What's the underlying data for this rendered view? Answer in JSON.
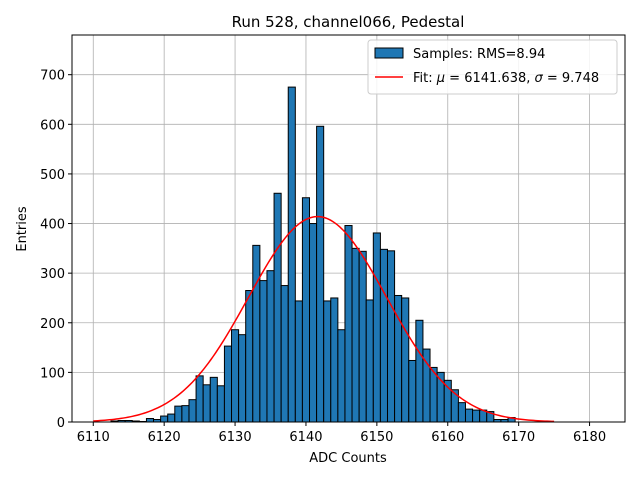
{
  "chart_data": {
    "type": "bar",
    "title": "Run 528, channel066, Pedestal",
    "xlabel": "ADC Counts",
    "ylabel": "Entries",
    "xlim": [
      6107,
      6185
    ],
    "ylim": [
      0,
      780
    ],
    "xticks": [
      6110,
      6120,
      6130,
      6140,
      6150,
      6160,
      6170,
      6180
    ],
    "yticks": [
      0,
      100,
      200,
      300,
      400,
      500,
      600,
      700
    ],
    "grid": true,
    "legend_position": "top-right",
    "legend": {
      "samples_label": "Samples: RMS=8.94",
      "fit_label_prefix": "Fit: ",
      "fit_mu_symbol": "μ",
      "fit_mu_value": " = 6141.638, ",
      "fit_sigma_symbol": "σ",
      "fit_sigma_value": " = 9.748"
    },
    "histogram": {
      "bin_width": 1,
      "name": "Samples: RMS=8.94",
      "bins_x": [
        6113,
        6114,
        6115,
        6116,
        6117,
        6118,
        6119,
        6120,
        6121,
        6122,
        6123,
        6124,
        6125,
        6126,
        6127,
        6128,
        6129,
        6130,
        6131,
        6132,
        6133,
        6134,
        6135,
        6136,
        6137,
        6138,
        6139,
        6140,
        6141,
        6142,
        6143,
        6144,
        6145,
        6146,
        6147,
        6148,
        6149,
        6150,
        6151,
        6152,
        6153,
        6154,
        6155,
        6156,
        6157,
        6158,
        6159,
        6160,
        6161,
        6162,
        6163,
        6164,
        6165,
        6166,
        6167,
        6168,
        6169
      ],
      "values": [
        2,
        3,
        3,
        2,
        1,
        7,
        5,
        12,
        16,
        32,
        33,
        45,
        93,
        75,
        90,
        73,
        153,
        186,
        176,
        265,
        356,
        285,
        305,
        461,
        275,
        675,
        244,
        452,
        400,
        596,
        244,
        250,
        186,
        396,
        350,
        344,
        246,
        381,
        348,
        345,
        255,
        250,
        124,
        205,
        147,
        110,
        100,
        84,
        65,
        39,
        26,
        24,
        24,
        21,
        5,
        5,
        9
      ]
    },
    "fit": {
      "name": "Fit: μ = 6141.638, σ = 9.748",
      "mu": 6141.638,
      "sigma": 9.748,
      "amplitude": 414,
      "x_range": [
        6110,
        6175
      ]
    },
    "colors": {
      "bar_fill": "#1f77b4",
      "bar_edge": "#000000",
      "fit_line": "#ff0000",
      "grid": "#b0b0b0"
    }
  }
}
